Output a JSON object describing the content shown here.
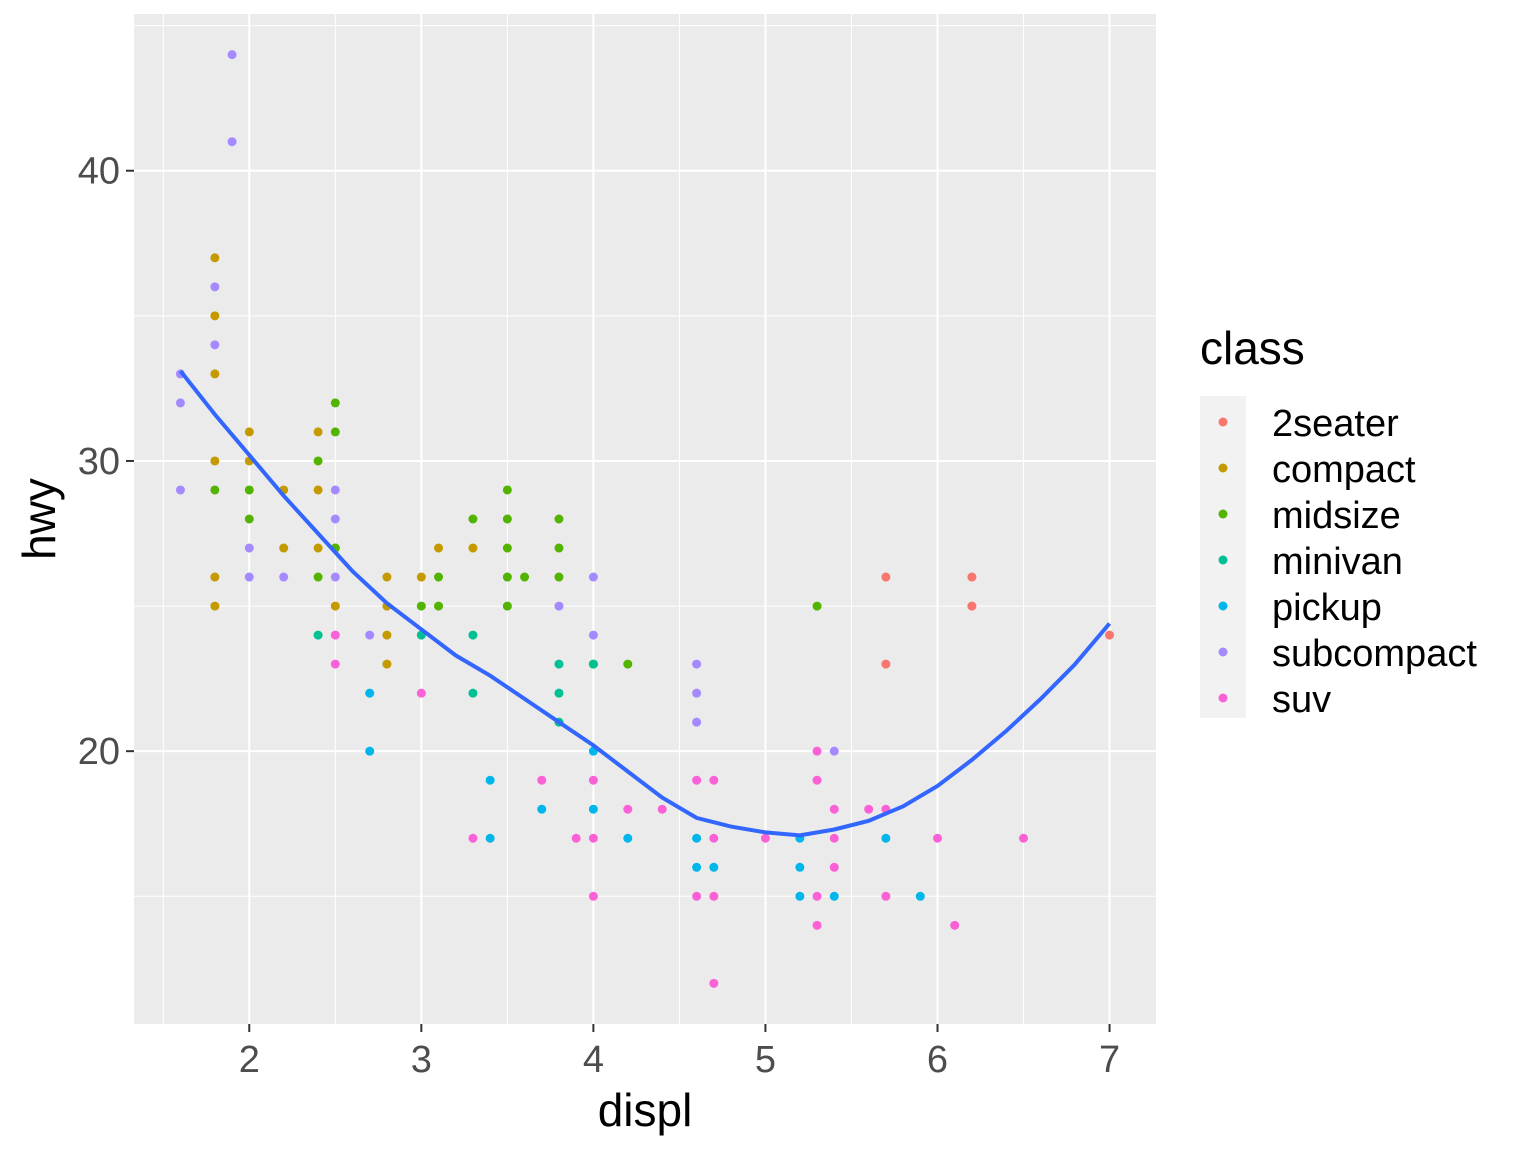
{
  "chart_data": {
    "type": "scatter",
    "xlabel": "displ",
    "ylabel": "hwy",
    "xlim": [
      1.33,
      7.27
    ],
    "ylim": [
      10.6,
      45.4
    ],
    "x_ticks": [
      2,
      3,
      4,
      5,
      6,
      7
    ],
    "y_ticks": [
      20,
      30,
      40
    ],
    "x_tick_labels": [
      "2",
      "3",
      "4",
      "5",
      "6",
      "7"
    ],
    "y_tick_labels": [
      "20",
      "30",
      "40"
    ],
    "grid": true,
    "legend": {
      "title": "class",
      "position": "right",
      "entries": [
        "2seater",
        "compact",
        "midsize",
        "minivan",
        "pickup",
        "subcompact",
        "suv"
      ]
    },
    "series": [
      {
        "name": "2seater",
        "color": "#F8766D",
        "points": [
          [
            5.7,
            26
          ],
          [
            5.7,
            23
          ],
          [
            6.2,
            26
          ],
          [
            6.2,
            25
          ],
          [
            7.0,
            24
          ]
        ]
      },
      {
        "name": "compact",
        "color": "#C49A00",
        "points": [
          [
            1.8,
            37
          ],
          [
            1.8,
            35
          ],
          [
            1.8,
            33
          ],
          [
            1.8,
            30
          ],
          [
            1.8,
            26
          ],
          [
            1.8,
            25
          ],
          [
            2.0,
            31
          ],
          [
            2.0,
            30
          ],
          [
            2.2,
            29
          ],
          [
            2.2,
            27
          ],
          [
            2.4,
            31
          ],
          [
            2.4,
            29
          ],
          [
            2.4,
            27
          ],
          [
            2.5,
            27
          ],
          [
            2.5,
            25
          ],
          [
            2.8,
            26
          ],
          [
            2.8,
            25
          ],
          [
            2.8,
            24
          ],
          [
            2.8,
            23
          ],
          [
            3.0,
            26
          ],
          [
            3.1,
            27
          ],
          [
            3.3,
            27
          ]
        ]
      },
      {
        "name": "midsize",
        "color": "#53B400",
        "points": [
          [
            1.8,
            29
          ],
          [
            2.0,
            29
          ],
          [
            2.0,
            28
          ],
          [
            2.4,
            30
          ],
          [
            2.4,
            26
          ],
          [
            2.5,
            32
          ],
          [
            2.5,
            31
          ],
          [
            2.5,
            27
          ],
          [
            3.0,
            25
          ],
          [
            3.1,
            26
          ],
          [
            3.1,
            25
          ],
          [
            3.3,
            28
          ],
          [
            3.5,
            29
          ],
          [
            3.5,
            28
          ],
          [
            3.5,
            27
          ],
          [
            3.5,
            26
          ],
          [
            3.5,
            25
          ],
          [
            3.6,
            26
          ],
          [
            3.8,
            28
          ],
          [
            3.8,
            27
          ],
          [
            3.8,
            26
          ],
          [
            4.0,
            23
          ],
          [
            4.2,
            23
          ],
          [
            5.3,
            25
          ]
        ]
      },
      {
        "name": "minivan",
        "color": "#00C094",
        "points": [
          [
            2.4,
            24
          ],
          [
            3.0,
            24
          ],
          [
            3.3,
            24
          ],
          [
            3.3,
            22
          ],
          [
            3.8,
            23
          ],
          [
            3.8,
            22
          ],
          [
            3.8,
            21
          ],
          [
            4.0,
            23
          ]
        ]
      },
      {
        "name": "pickup",
        "color": "#00B6EB",
        "points": [
          [
            2.7,
            22
          ],
          [
            2.7,
            20
          ],
          [
            3.4,
            19
          ],
          [
            3.4,
            17
          ],
          [
            3.7,
            18
          ],
          [
            4.0,
            20
          ],
          [
            4.0,
            18
          ],
          [
            4.2,
            17
          ],
          [
            4.6,
            17
          ],
          [
            4.6,
            16
          ],
          [
            4.7,
            16
          ],
          [
            5.2,
            17
          ],
          [
            5.2,
            16
          ],
          [
            5.2,
            15
          ],
          [
            5.4,
            15
          ],
          [
            5.7,
            17
          ],
          [
            5.9,
            15
          ]
        ]
      },
      {
        "name": "subcompact",
        "color": "#A58AFF",
        "points": [
          [
            1.6,
            33
          ],
          [
            1.6,
            32
          ],
          [
            1.6,
            29
          ],
          [
            1.8,
            36
          ],
          [
            1.8,
            34
          ],
          [
            1.9,
            44
          ],
          [
            1.9,
            41
          ],
          [
            2.0,
            27
          ],
          [
            2.0,
            26
          ],
          [
            2.2,
            26
          ],
          [
            2.5,
            29
          ],
          [
            2.5,
            28
          ],
          [
            2.5,
            26
          ],
          [
            2.7,
            24
          ],
          [
            3.8,
            25
          ],
          [
            4.0,
            26
          ],
          [
            4.0,
            24
          ],
          [
            4.6,
            23
          ],
          [
            4.6,
            22
          ],
          [
            4.6,
            21
          ],
          [
            5.4,
            20
          ]
        ]
      },
      {
        "name": "suv",
        "color": "#FB61D7",
        "points": [
          [
            2.5,
            24
          ],
          [
            2.5,
            23
          ],
          [
            3.0,
            22
          ],
          [
            3.3,
            17
          ],
          [
            3.7,
            19
          ],
          [
            3.9,
            17
          ],
          [
            4.0,
            19
          ],
          [
            4.0,
            17
          ],
          [
            4.0,
            15
          ],
          [
            4.2,
            18
          ],
          [
            4.4,
            18
          ],
          [
            4.6,
            19
          ],
          [
            4.6,
            15
          ],
          [
            4.7,
            19
          ],
          [
            4.7,
            17
          ],
          [
            4.7,
            15
          ],
          [
            4.7,
            12
          ],
          [
            5.0,
            17
          ],
          [
            5.3,
            20
          ],
          [
            5.3,
            19
          ],
          [
            5.3,
            15
          ],
          [
            5.3,
            14
          ],
          [
            5.4,
            18
          ],
          [
            5.4,
            17
          ],
          [
            5.4,
            16
          ],
          [
            5.6,
            18
          ],
          [
            5.7,
            18
          ],
          [
            5.7,
            15
          ],
          [
            6.0,
            17
          ],
          [
            6.1,
            14
          ],
          [
            6.5,
            17
          ]
        ]
      }
    ],
    "smooth_line": {
      "color": "#3366FF",
      "points": [
        [
          1.6,
          33.1
        ],
        [
          1.8,
          31.6
        ],
        [
          2.0,
          30.2
        ],
        [
          2.2,
          28.8
        ],
        [
          2.4,
          27.5
        ],
        [
          2.6,
          26.2
        ],
        [
          2.8,
          25.1
        ],
        [
          3.0,
          24.2
        ],
        [
          3.2,
          23.3
        ],
        [
          3.4,
          22.6
        ],
        [
          3.6,
          21.8
        ],
        [
          3.8,
          21.0
        ],
        [
          4.0,
          20.2
        ],
        [
          4.2,
          19.3
        ],
        [
          4.4,
          18.4
        ],
        [
          4.6,
          17.7
        ],
        [
          4.8,
          17.4
        ],
        [
          5.0,
          17.2
        ],
        [
          5.2,
          17.1
        ],
        [
          5.4,
          17.3
        ],
        [
          5.6,
          17.6
        ],
        [
          5.8,
          18.1
        ],
        [
          6.0,
          18.8
        ],
        [
          6.2,
          19.7
        ],
        [
          6.4,
          20.7
        ],
        [
          6.6,
          21.8
        ],
        [
          6.8,
          23.0
        ],
        [
          7.0,
          24.4
        ]
      ]
    }
  }
}
